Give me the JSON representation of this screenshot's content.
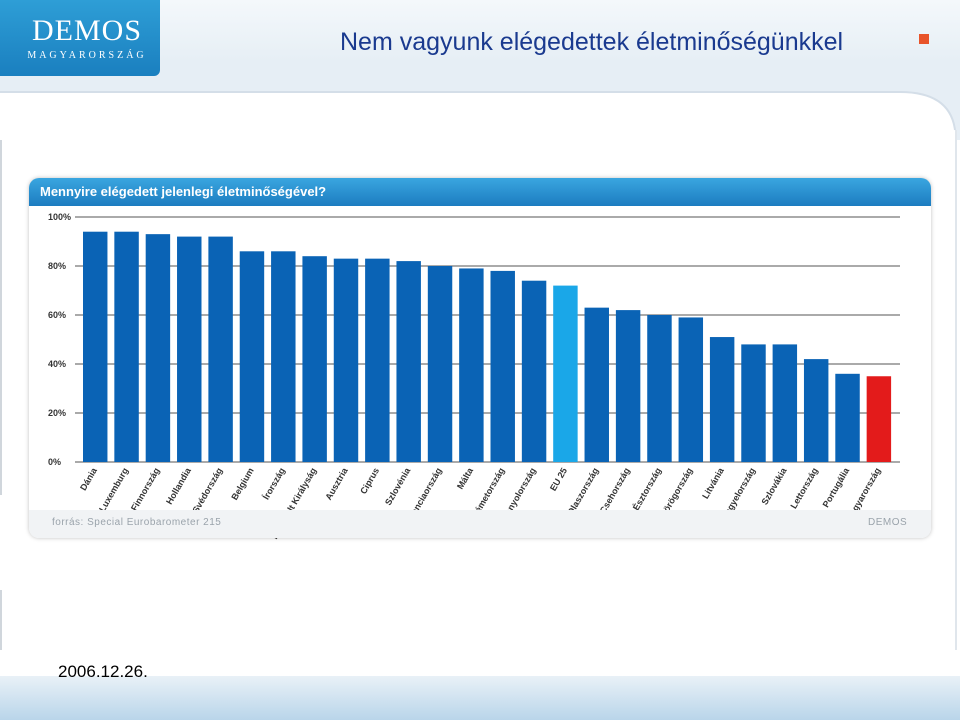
{
  "header": {
    "logo_main": "DEMOS",
    "logo_sub": "MAGYARORSZÁG",
    "title": "Nem vagyunk elégedettek életminőségünkkel"
  },
  "chart_card": {
    "question": "Mennyire elégedett jelenlegi életminőségével?",
    "source": "forrás: Special Eurobarometer 215",
    "brand": "DEMOS"
  },
  "footer": {
    "date": "2006.12.26."
  },
  "colors": {
    "bar": "#0a63b5",
    "highlight_eu": "#1aa7e8",
    "highlight_hu": "#e31b1b",
    "title": "#1a3a8f"
  },
  "chart_data": {
    "type": "bar",
    "title": "Mennyire elégedett jelenlegi életminőségével?",
    "xlabel": "",
    "ylabel": "",
    "ylim": [
      0,
      100
    ],
    "yticks": [
      0,
      20,
      40,
      60,
      80,
      100
    ],
    "ytick_labels": [
      "0%",
      "20%",
      "40%",
      "60%",
      "80%",
      "100%"
    ],
    "grid": true,
    "categories": [
      "Dánia",
      "Luxemburg",
      "Finnország",
      "Hollandia",
      "Svédország",
      "Belgium",
      "Írország",
      "Egyesült Királyság",
      "Ausztria",
      "Ciprus",
      "Szlovénia",
      "Franciaország",
      "Málta",
      "Németország",
      "Spanyolország",
      "EU 25",
      "Olaszország",
      "Csehország",
      "Észtország",
      "Görögország",
      "Litvánia",
      "Lengyelország",
      "Szlovákia",
      "Lettország",
      "Portugália",
      "Magyarország"
    ],
    "values": [
      94,
      94,
      93,
      92,
      92,
      86,
      86,
      84,
      83,
      83,
      82,
      80,
      79,
      78,
      74,
      72,
      63,
      62,
      60,
      59,
      51,
      48,
      48,
      42,
      36,
      35
    ],
    "highlight": {
      "EU 25": "#1aa7e8",
      "Magyarország": "#e31b1b"
    }
  }
}
